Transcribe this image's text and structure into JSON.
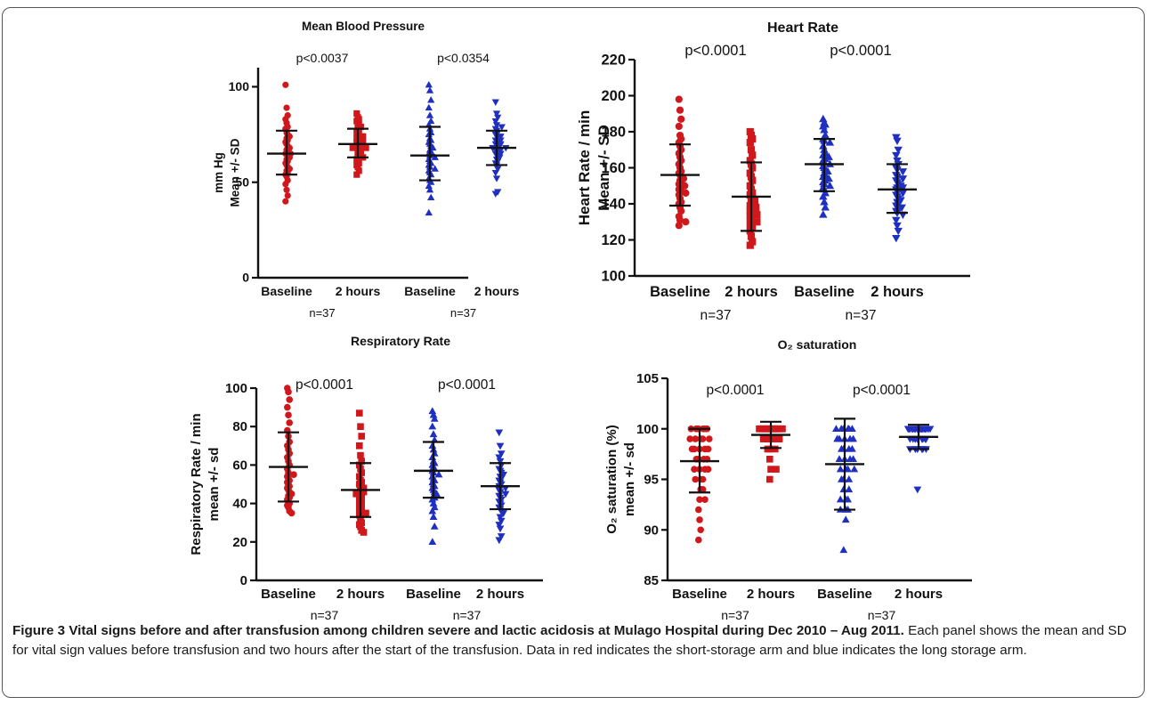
{
  "caption": {
    "label": "Figure 3",
    "title": "Vital signs before and after transfusion among children severe and lactic acidosis at Mulago Hospital during Dec 2010 – Aug 2011.",
    "text": "Each panel shows the mean and SD for vital sign values before transfusion and two hours after the start of the transfusion. Data in red indicates the short-storage arm and blue indicates the long storage arm."
  },
  "colors": {
    "short_storage": "#d0181c",
    "long_storage": "#1f2fbf",
    "ink": "#111111"
  },
  "chart_data": [
    {
      "type": "scatter",
      "title": "Mean Blood Pressure",
      "ylabel": [
        "mm Hg",
        "Mean +/- SD"
      ],
      "ylim": [
        0,
        110
      ],
      "yticks": [
        0,
        50,
        100
      ],
      "categories": [
        "Baseline",
        "2 hours",
        "Baseline",
        "2 hours"
      ],
      "group_labels": [
        "n=37",
        "n=37"
      ],
      "p_values": [
        "p<0.0037",
        "p<0.0354"
      ],
      "series": [
        {
          "group": "short",
          "marker": "circle",
          "mean": 65,
          "sd_low": 54,
          "sd_high": 77,
          "values": [
            101,
            89,
            85,
            83,
            81,
            79,
            78,
            76,
            75,
            74,
            73,
            72,
            71,
            70,
            69,
            68,
            67,
            66,
            65,
            65,
            64,
            63,
            62,
            61,
            60,
            59,
            58,
            57,
            56,
            55,
            54,
            53,
            51,
            49,
            46,
            43,
            40
          ]
        },
        {
          "group": "short",
          "marker": "square",
          "mean": 70,
          "sd_low": 63,
          "sd_high": 78,
          "values": [
            86,
            84,
            83,
            82,
            81,
            80,
            79,
            78,
            77,
            76,
            75,
            74,
            73,
            72,
            72,
            71,
            71,
            70,
            70,
            69,
            69,
            68,
            68,
            67,
            67,
            66,
            65,
            65,
            64,
            63,
            62,
            61,
            60,
            59,
            58,
            56,
            54
          ]
        },
        {
          "group": "long",
          "marker": "triangle-up",
          "mean": 64,
          "sd_low": 51,
          "sd_high": 79,
          "values": [
            101,
            98,
            93,
            89,
            85,
            82,
            80,
            78,
            76,
            75,
            73,
            72,
            71,
            70,
            69,
            68,
            67,
            66,
            65,
            64,
            63,
            62,
            61,
            60,
            59,
            58,
            57,
            56,
            55,
            54,
            52,
            51,
            50,
            48,
            46,
            42,
            34
          ]
        },
        {
          "group": "long",
          "marker": "triangle-down",
          "mean": 68,
          "sd_low": 59,
          "sd_high": 77,
          "values": [
            92,
            86,
            84,
            82,
            80,
            79,
            78,
            77,
            76,
            75,
            74,
            73,
            72,
            72,
            71,
            70,
            70,
            69,
            69,
            68,
            68,
            67,
            67,
            66,
            65,
            65,
            64,
            63,
            62,
            61,
            60,
            59,
            57,
            55,
            52,
            45,
            44
          ]
        }
      ]
    },
    {
      "type": "scatter",
      "title": "Heart Rate",
      "ylabel": [
        "Heart Rate / min",
        "Mean +/- SD"
      ],
      "ylim": [
        100,
        220
      ],
      "yticks": [
        100,
        120,
        140,
        160,
        180,
        200,
        220
      ],
      "categories": [
        "Baseline",
        "2 hours",
        "Baseline",
        "2 hours"
      ],
      "group_labels": [
        "n=37",
        "n=37"
      ],
      "p_values": [
        "p<0.0001",
        "p<0.0001"
      ],
      "series": [
        {
          "group": "short",
          "marker": "circle",
          "mean": 156,
          "sd_low": 139,
          "sd_high": 173,
          "values": [
            198,
            192,
            187,
            183,
            178,
            176,
            174,
            172,
            170,
            168,
            166,
            164,
            162,
            160,
            158,
            157,
            156,
            155,
            154,
            153,
            152,
            151,
            150,
            149,
            148,
            147,
            146,
            145,
            143,
            141,
            140,
            138,
            136,
            133,
            131,
            130,
            128
          ]
        },
        {
          "group": "short",
          "marker": "square",
          "mean": 144,
          "sd_low": 125,
          "sd_high": 163,
          "values": [
            180,
            178,
            176,
            174,
            170,
            167,
            164,
            162,
            160,
            157,
            155,
            153,
            150,
            148,
            146,
            145,
            144,
            143,
            142,
            141,
            140,
            139,
            138,
            137,
            136,
            135,
            134,
            133,
            131,
            130,
            129,
            128,
            127,
            125,
            122,
            119,
            117
          ]
        },
        {
          "group": "long",
          "marker": "triangle-up",
          "mean": 162,
          "sd_low": 147,
          "sd_high": 176,
          "values": [
            187,
            185,
            184,
            183,
            181,
            178,
            176,
            175,
            174,
            172,
            170,
            168,
            167,
            166,
            165,
            164,
            163,
            162,
            161,
            160,
            159,
            158,
            157,
            156,
            155,
            154,
            153,
            152,
            151,
            150,
            149,
            148,
            146,
            144,
            141,
            138,
            134
          ]
        },
        {
          "group": "long",
          "marker": "triangle-down",
          "mean": 148,
          "sd_low": 135,
          "sd_high": 162,
          "values": [
            177,
            175,
            170,
            167,
            164,
            162,
            160,
            159,
            158,
            156,
            155,
            154,
            153,
            152,
            151,
            150,
            149,
            149,
            148,
            147,
            146,
            145,
            144,
            143,
            142,
            141,
            140,
            139,
            138,
            137,
            136,
            135,
            134,
            131,
            128,
            125,
            121
          ]
        }
      ]
    },
    {
      "type": "scatter",
      "title": "Respiratory Rate",
      "ylabel": [
        "Respiratory Rate / min",
        "mean +/- sd"
      ],
      "ylim": [
        0,
        100
      ],
      "yticks": [
        0,
        20,
        40,
        60,
        80,
        100
      ],
      "categories": [
        "Baseline",
        "2 hours",
        "Baseline",
        "2 hours"
      ],
      "group_labels": [
        "n=37",
        "n=37"
      ],
      "p_values": [
        "p<0.0001",
        "p<0.0001"
      ],
      "series": [
        {
          "group": "short",
          "marker": "circle",
          "mean": 59,
          "sd_low": 41,
          "sd_high": 77,
          "values": [
            100,
            98,
            94,
            90,
            86,
            82,
            78,
            75,
            72,
            70,
            68,
            66,
            64,
            62,
            60,
            58,
            56,
            55,
            54,
            53,
            52,
            51,
            50,
            49,
            48,
            47,
            46,
            45,
            44,
            43,
            42,
            41,
            40,
            39,
            38,
            36,
            35
          ]
        },
        {
          "group": "short",
          "marker": "square",
          "mean": 47,
          "sd_low": 33,
          "sd_high": 61,
          "values": [
            87,
            80,
            75,
            70,
            65,
            62,
            60,
            58,
            56,
            54,
            52,
            51,
            50,
            49,
            48,
            48,
            47,
            46,
            46,
            45,
            44,
            43,
            42,
            41,
            40,
            39,
            38,
            37,
            36,
            35,
            34,
            32,
            30,
            29,
            28,
            26,
            25
          ]
        },
        {
          "group": "long",
          "marker": "triangle-up",
          "mean": 57,
          "sd_low": 43,
          "sd_high": 72,
          "values": [
            88,
            86,
            84,
            80,
            76,
            73,
            70,
            68,
            66,
            64,
            62,
            61,
            60,
            59,
            58,
            57,
            56,
            55,
            54,
            53,
            52,
            51,
            50,
            49,
            48,
            47,
            46,
            45,
            44,
            43,
            42,
            40,
            38,
            36,
            33,
            28,
            20
          ]
        },
        {
          "group": "long",
          "marker": "triangle-down",
          "mean": 49,
          "sd_low": 37,
          "sd_high": 61,
          "values": [
            77,
            70,
            66,
            64,
            62,
            60,
            58,
            57,
            56,
            55,
            54,
            53,
            52,
            51,
            50,
            49,
            48,
            48,
            47,
            46,
            45,
            44,
            43,
            42,
            41,
            40,
            39,
            38,
            37,
            36,
            35,
            33,
            31,
            29,
            27,
            23,
            21
          ]
        }
      ]
    },
    {
      "type": "scatter",
      "title": "O₂ saturation",
      "ylabel": [
        "O₂ saturation (%)",
        "mean +/- sd"
      ],
      "ylim": [
        85,
        105
      ],
      "yticks": [
        85,
        90,
        95,
        100,
        105
      ],
      "categories": [
        "Baseline",
        "2 hours",
        "Baseline",
        "2 hours"
      ],
      "group_labels": [
        "n=37",
        "n=37"
      ],
      "p_values": [
        "p<0.0001",
        "p<0.0001"
      ],
      "series": [
        {
          "group": "short",
          "marker": "circle",
          "mean": 96.8,
          "sd_low": 93.7,
          "sd_high": 100,
          "values": [
            100,
            100,
            100,
            100,
            100,
            100,
            100,
            100,
            99,
            99,
            99,
            99,
            99,
            98,
            98,
            98,
            98,
            98,
            97,
            97,
            97,
            97,
            96,
            96,
            96,
            96,
            95,
            95,
            95,
            94,
            94,
            93,
            93,
            92,
            91,
            90,
            89
          ]
        },
        {
          "group": "short",
          "marker": "square",
          "mean": 99.4,
          "sd_low": 98.1,
          "sd_high": 100.7,
          "values": [
            100,
            100,
            100,
            100,
            100,
            100,
            100,
            100,
            100,
            100,
            100,
            100,
            100,
            100,
            100,
            100,
            100,
            100,
            100,
            100,
            100,
            100,
            99,
            99,
            99,
            99,
            99,
            99,
            99,
            99,
            98,
            98,
            98,
            97,
            96,
            96,
            95
          ]
        },
        {
          "group": "long",
          "marker": "triangle-up",
          "mean": 96.5,
          "sd_low": 92,
          "sd_high": 101,
          "values": [
            100,
            100,
            100,
            100,
            100,
            100,
            100,
            99,
            99,
            99,
            99,
            99,
            98,
            98,
            98,
            98,
            97,
            97,
            97,
            97,
            96,
            96,
            96,
            96,
            95,
            95,
            95,
            94,
            94,
            93,
            93,
            93,
            92,
            92,
            92,
            91,
            88
          ]
        },
        {
          "group": "long",
          "marker": "triangle-down",
          "mean": 99.2,
          "sd_low": 98,
          "sd_high": 100.4,
          "values": [
            100,
            100,
            100,
            100,
            100,
            100,
            100,
            100,
            100,
            100,
            100,
            100,
            100,
            100,
            100,
            100,
            100,
            100,
            100,
            100,
            100,
            99,
            99,
            99,
            99,
            99,
            99,
            99,
            99,
            99,
            98,
            98,
            98,
            98,
            98,
            98,
            94
          ]
        }
      ]
    }
  ]
}
